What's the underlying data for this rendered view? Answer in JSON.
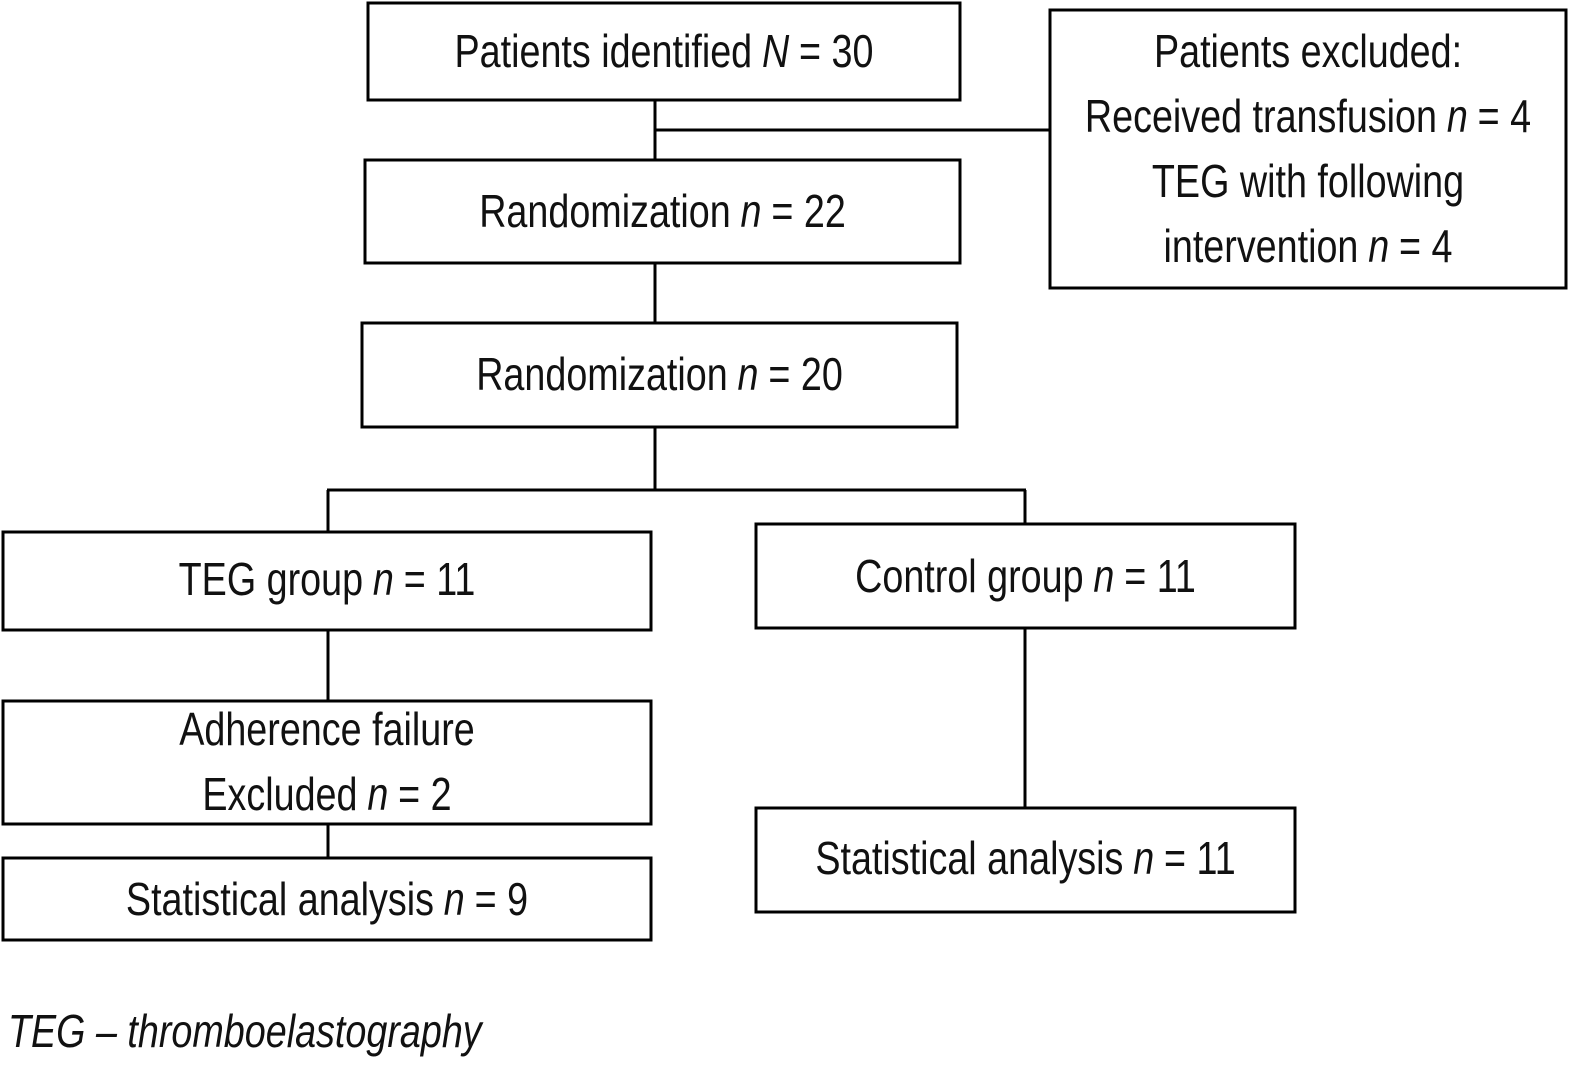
{
  "nodes": [
    {
      "lines": [
        {
          "text": "Patients identified",
          "italic": "N",
          "rest": "= 30"
        }
      ]
    },
    {
      "lines": [
        {
          "text": "Patients excluded:"
        },
        {
          "text": "Received transfusion",
          "italic": "n",
          "rest": "= 4"
        },
        {
          "text": "TEG with following"
        },
        {
          "text": "intervention",
          "italic": "n",
          "rest": "= 4"
        }
      ]
    },
    {
      "lines": [
        {
          "text": "Randomization",
          "italic": "n",
          "rest": "= 22"
        }
      ]
    },
    {
      "lines": [
        {
          "text": "Randomization",
          "italic": "n",
          "rest": "= 20"
        }
      ]
    },
    {
      "lines": [
        {
          "text": "TEG group",
          "italic": "n",
          "rest": "= 11"
        }
      ]
    },
    {
      "lines": [
        {
          "text": "Control group",
          "italic": "n",
          "rest": "= 11"
        }
      ]
    },
    {
      "lines": [
        {
          "text": "Adherence failure"
        },
        {
          "text": "Excluded",
          "italic": "n",
          "rest": "= 2"
        }
      ]
    },
    {
      "lines": [
        {
          "text": "Statistical analysis",
          "italic": "n",
          "rest": "= 9"
        }
      ]
    },
    {
      "lines": [
        {
          "text": "Statistical analysis",
          "italic": "n",
          "rest": "= 11"
        }
      ]
    }
  ],
  "footnote": "TEG – thromboelastography"
}
